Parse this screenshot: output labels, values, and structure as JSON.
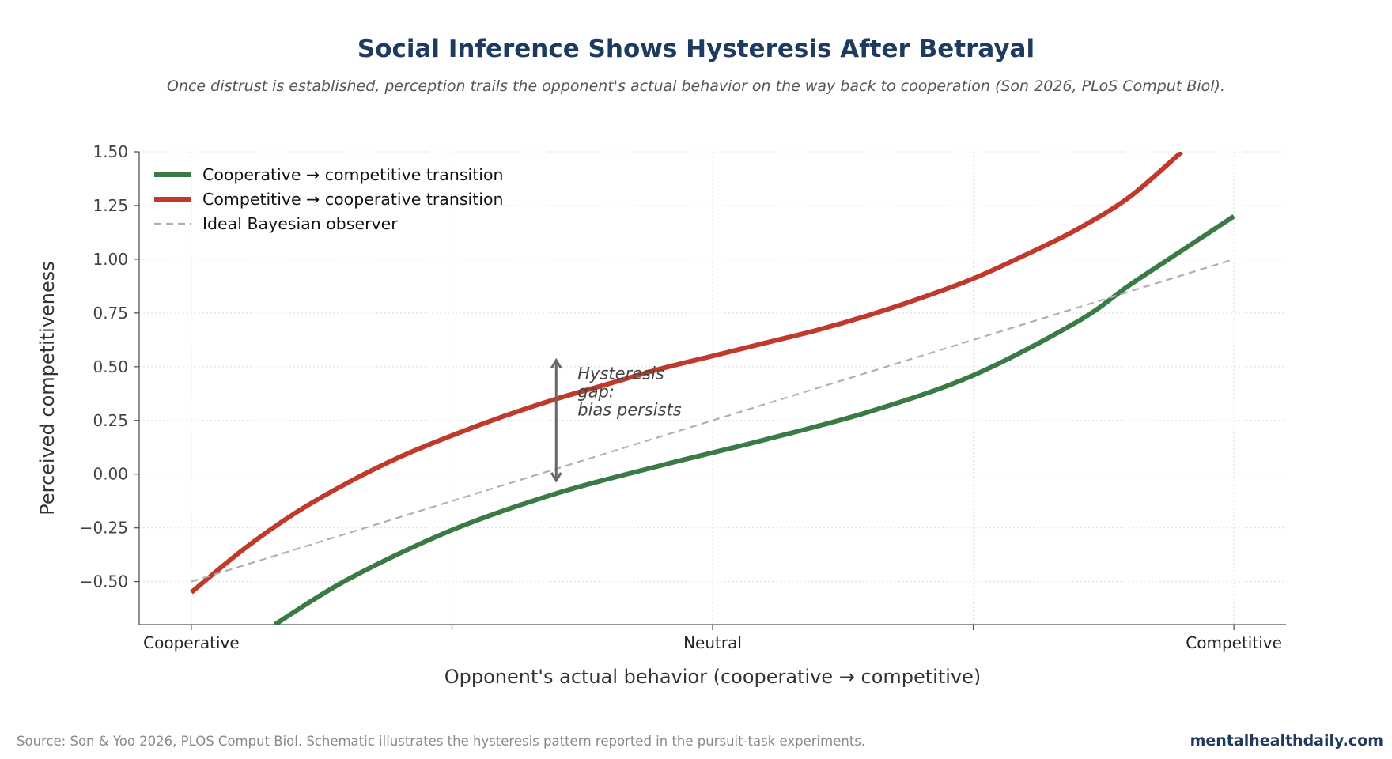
{
  "header": {
    "title": "Social Inference Shows Hysteresis After Betrayal",
    "subtitle": "Once distrust is established, perception trails the opponent's actual behavior on the way back to cooperation (Son 2026, PLoS Comput Biol)."
  },
  "footer": {
    "source": "Source: Son & Yoo 2026, PLOS Comput Biol. Schematic illustrates the hysteresis pattern reported in the pursuit-task experiments.",
    "brand": "mentalhealthdaily.com"
  },
  "colors": {
    "green": "#3a7a45",
    "red": "#c0392b",
    "ideal": "#b0b0b0",
    "annotation": "#555555",
    "title": "#1f3a5f"
  },
  "chart_data": {
    "type": "line",
    "xlabel": "Opponent's actual behavior (cooperative → competitive)",
    "ylabel": "Perceived competitiveness",
    "xlim": [
      -0.05,
      1.05
    ],
    "ylim": [
      -0.7,
      1.5
    ],
    "x_ticks": [
      {
        "value": 0.0,
        "label": "Cooperative"
      },
      {
        "value": 0.25,
        "label": ""
      },
      {
        "value": 0.5,
        "label": "Neutral"
      },
      {
        "value": 0.75,
        "label": ""
      },
      {
        "value": 1.0,
        "label": "Competitive"
      }
    ],
    "y_ticks": [
      {
        "value": 1.5,
        "label": "1.50"
      },
      {
        "value": 1.25,
        "label": "1.25"
      },
      {
        "value": 1.0,
        "label": "1.00"
      },
      {
        "value": 0.75,
        "label": "0.75"
      },
      {
        "value": 0.5,
        "label": "0.50"
      },
      {
        "value": 0.25,
        "label": "0.25"
      },
      {
        "value": 0.0,
        "label": "0.00"
      },
      {
        "value": -0.25,
        "label": "−0.25"
      },
      {
        "value": -0.5,
        "label": "−0.50"
      }
    ],
    "grid": true,
    "legend_position": "top-left",
    "series": [
      {
        "name": "Cooperative → competitive transition",
        "color": "#3a7a45",
        "style": "solid",
        "x": [
          0.08,
          0.15,
          0.25,
          0.35,
          0.45,
          0.5,
          0.55,
          0.65,
          0.75,
          0.85,
          0.9,
          0.95,
          1.0
        ],
        "y": [
          -0.7,
          -0.49,
          -0.26,
          -0.09,
          0.04,
          0.1,
          0.16,
          0.29,
          0.46,
          0.71,
          0.88,
          1.04,
          1.2
        ]
      },
      {
        "name": "Competitive → cooperative transition",
        "color": "#c0392b",
        "style": "solid",
        "x": [
          0.0,
          0.05,
          0.1,
          0.15,
          0.2,
          0.25,
          0.3,
          0.35,
          0.4,
          0.45,
          0.5,
          0.55,
          0.6,
          0.65,
          0.7,
          0.75,
          0.8,
          0.85,
          0.9,
          0.95
        ],
        "y": [
          -0.55,
          -0.35,
          -0.18,
          -0.04,
          0.08,
          0.18,
          0.27,
          0.35,
          0.42,
          0.49,
          0.55,
          0.61,
          0.67,
          0.74,
          0.82,
          0.91,
          1.02,
          1.14,
          1.29,
          1.5
        ]
      },
      {
        "name": "Ideal Bayesian observer",
        "color": "#b0b0b0",
        "style": "dashed",
        "x": [
          0.0,
          1.0
        ],
        "y": [
          -0.5,
          1.0
        ]
      }
    ],
    "annotations": [
      {
        "type": "double-arrow",
        "x": 0.35,
        "y_from": -0.03,
        "y_to": 0.53,
        "text_lines": [
          "Hysteresis",
          "gap:",
          "bias persists"
        ]
      }
    ]
  }
}
